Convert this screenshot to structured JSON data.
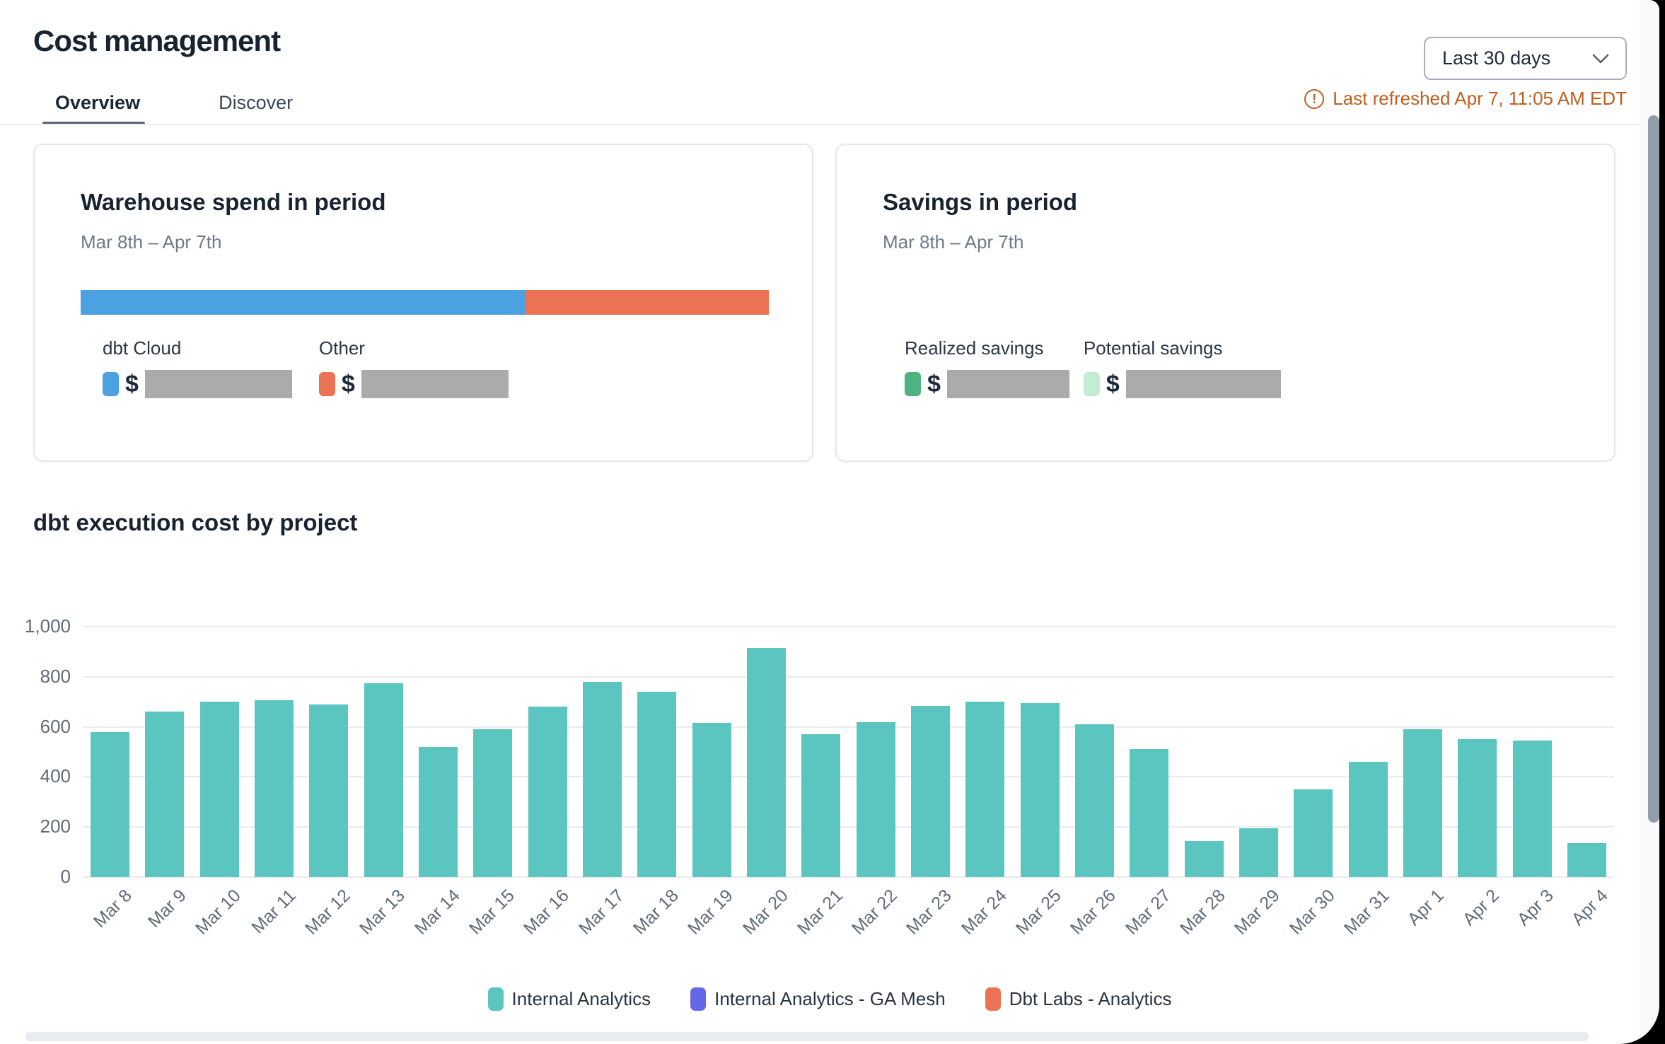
{
  "header": {
    "title": "Cost management",
    "tabs": [
      {
        "label": "Overview",
        "active": true
      },
      {
        "label": "Discover",
        "active": false
      }
    ],
    "date_range_selected": "Last 30 days",
    "last_refreshed": "Last refreshed Apr 7, 11:05 AM EDT",
    "status_color": "#BF5E1E"
  },
  "cards": {
    "warehouse": {
      "title": "Warehouse spend in period",
      "subtitle": "Mar 8th – Apr 7th",
      "bar": {
        "segments": [
          {
            "name": "dbt Cloud",
            "color": "#4BA1E1",
            "fraction": 0.645
          },
          {
            "name": "Other",
            "color": "#EC7254",
            "fraction": 0.355
          }
        ]
      },
      "legend": [
        {
          "label": "dbt Cloud",
          "color": "#4BA1E1",
          "value_prefix": "$",
          "value_redacted": true,
          "redacted_width": 208
        },
        {
          "label": "Other",
          "color": "#EC7254",
          "value_prefix": "$",
          "value_redacted": true,
          "redacted_width": 208
        }
      ]
    },
    "savings": {
      "title": "Savings in period",
      "subtitle": "Mar 8th – Apr 7th",
      "legend": [
        {
          "label": "Realized savings",
          "color": "#4DB380",
          "value_prefix": "$",
          "value_redacted": true,
          "redacted_width": 173
        },
        {
          "label": "Potential savings",
          "color": "#C2EDD4",
          "value_prefix": "$",
          "value_redacted": true,
          "redacted_width": 219
        }
      ]
    }
  },
  "chart_section": {
    "title": "dbt execution cost by project"
  },
  "chart_data": {
    "type": "bar",
    "title": "dbt execution cost by project",
    "categories": [
      "Mar 8",
      "Mar 9",
      "Mar 10",
      "Mar 11",
      "Mar 12",
      "Mar 13",
      "Mar 14",
      "Mar 15",
      "Mar 16",
      "Mar 17",
      "Mar 18",
      "Mar 19",
      "Mar 20",
      "Mar 21",
      "Mar 22",
      "Mar 23",
      "Mar 24",
      "Mar 25",
      "Mar 26",
      "Mar 27",
      "Mar 28",
      "Mar 29",
      "Mar 30",
      "Mar 31",
      "Apr 1",
      "Apr 2",
      "Apr 3",
      "Apr 4"
    ],
    "series": [
      {
        "name": "Internal Analytics",
        "color": "#5BC5BF",
        "values": [
          580,
          660,
          700,
          705,
          690,
          775,
          520,
          590,
          680,
          780,
          740,
          615,
          915,
          570,
          620,
          685,
          700,
          695,
          610,
          510,
          145,
          195,
          350,
          460,
          590,
          550,
          545,
          135
        ]
      },
      {
        "name": "Internal Analytics - GA Mesh",
        "color": "#6467E8",
        "values": [
          0,
          0,
          0,
          0,
          0,
          0,
          0,
          0,
          0,
          0,
          0,
          0,
          0,
          0,
          0,
          0,
          0,
          0,
          0,
          0,
          0,
          0,
          0,
          0,
          0,
          0,
          0,
          0
        ]
      },
      {
        "name": "Dbt Labs - Analytics",
        "color": "#EC7254",
        "values": [
          0,
          0,
          0,
          0,
          0,
          0,
          0,
          0,
          0,
          0,
          0,
          0,
          0,
          0,
          0,
          0,
          0,
          0,
          0,
          0,
          0,
          0,
          0,
          0,
          0,
          0,
          0,
          0
        ]
      }
    ],
    "xlabel": "",
    "ylabel": "",
    "ylim": [
      0,
      1000
    ],
    "yticks": [
      0,
      200,
      400,
      600,
      800,
      1000
    ],
    "ytick_labels": [
      "0",
      "200",
      "400",
      "600",
      "800",
      "1,000"
    ],
    "grid": true,
    "legend_position": "bottom"
  }
}
